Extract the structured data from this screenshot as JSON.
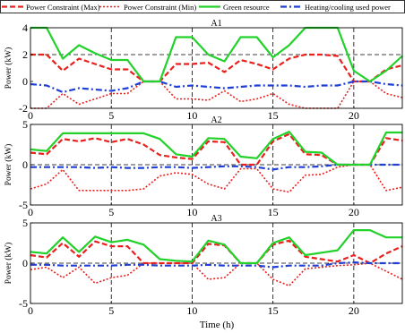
{
  "legend": {
    "items": [
      {
        "label": "Power Constraint (Max)",
        "color": "#e8211d",
        "dash": "dash"
      },
      {
        "label": "Power Constraint (Min)",
        "color": "#e8211d",
        "dash": "dot"
      },
      {
        "label": "Green resource",
        "color": "#22d22a",
        "dash": "solid"
      },
      {
        "label": "Heating/cooling used power",
        "color": "#1f3fd6",
        "dash": "dashdot"
      }
    ]
  },
  "xlabel": "Time (h)",
  "chart_data": [
    {
      "type": "line",
      "title": "A1",
      "ylabel": "Power (kW)",
      "xlim": [
        0,
        23
      ],
      "ylim": [
        -2,
        4
      ],
      "yticks": [
        -2,
        0,
        2,
        4
      ],
      "xticks": [
        0,
        5,
        10,
        15,
        20
      ],
      "grid_y": [
        2
      ],
      "grid_x": [
        5,
        10,
        15,
        20
      ],
      "x": [
        0,
        1,
        2,
        3,
        4,
        5,
        6,
        7,
        8,
        9,
        10,
        11,
        12,
        13,
        14,
        15,
        16,
        17,
        18,
        19,
        20,
        21,
        22,
        23
      ],
      "series": [
        {
          "name": "Power Constraint (Max)",
          "values": [
            2.0,
            2.0,
            0.8,
            1.7,
            1.3,
            0.9,
            0.9,
            0.0,
            0.0,
            1.3,
            1.3,
            1.4,
            0.7,
            1.6,
            1.3,
            0.9,
            1.7,
            2.0,
            2.0,
            1.9,
            0.0,
            0.0,
            0.9,
            1.2
          ]
        },
        {
          "name": "Power Constraint (Min)",
          "values": [
            -2.0,
            -2.0,
            -0.9,
            -1.7,
            -1.3,
            -0.9,
            -0.9,
            0.0,
            0.0,
            -1.3,
            -1.3,
            -1.4,
            -0.7,
            -1.5,
            -1.3,
            -0.9,
            -1.7,
            -2.0,
            -2.0,
            -2.0,
            0.0,
            0.0,
            -0.9,
            -1.2
          ]
        },
        {
          "name": "Green resource",
          "values": [
            4.0,
            4.0,
            1.7,
            2.7,
            2.1,
            1.6,
            1.6,
            0.0,
            0.0,
            3.3,
            3.3,
            2.0,
            1.5,
            3.3,
            3.3,
            1.8,
            2.7,
            4.0,
            4.0,
            4.0,
            0.8,
            0.0,
            0.8,
            1.9
          ]
        },
        {
          "name": "Heating/cooling used power",
          "values": [
            -0.2,
            -0.3,
            -0.8,
            -0.5,
            -0.6,
            -0.7,
            -0.5,
            0.0,
            0.0,
            -0.4,
            -0.3,
            -0.4,
            -0.5,
            -0.4,
            -0.3,
            -0.3,
            -0.3,
            -0.4,
            -0.3,
            -0.3,
            0.0,
            0.0,
            -0.2,
            -0.3
          ]
        }
      ]
    },
    {
      "type": "line",
      "title": "A2",
      "ylabel": "Power (kW)",
      "xlim": [
        0,
        23
      ],
      "ylim": [
        -5,
        5
      ],
      "yticks": [
        -5,
        0,
        5
      ],
      "xticks": [
        0,
        5,
        10,
        15,
        20
      ],
      "grid_y": [
        0
      ],
      "grid_x": [
        5,
        10,
        15,
        20
      ],
      "x": [
        0,
        1,
        2,
        3,
        4,
        5,
        6,
        7,
        8,
        9,
        10,
        11,
        12,
        13,
        14,
        15,
        16,
        17,
        18,
        19,
        20,
        21,
        22,
        23
      ],
      "series": [
        {
          "name": "Power Constraint (Max)",
          "values": [
            1.5,
            1.3,
            3.2,
            2.9,
            3.3,
            2.8,
            3.2,
            2.5,
            1.2,
            0.9,
            0.7,
            2.9,
            2.8,
            0.0,
            0.0,
            2.9,
            3.8,
            1.3,
            1.2,
            0.0,
            0.0,
            0.0,
            3.3,
            3.0
          ]
        },
        {
          "name": "Power Constraint (Min)",
          "values": [
            -3.0,
            -2.4,
            -0.6,
            -3.2,
            -3.2,
            -3.2,
            -3.2,
            -3.0,
            -1.4,
            -1.0,
            -1.2,
            -2.4,
            -3.0,
            -0.5,
            -0.5,
            -3.0,
            -3.4,
            -1.3,
            -1.2,
            -0.3,
            0.0,
            0.0,
            -3.2,
            -2.8
          ]
        },
        {
          "name": "Green resource",
          "values": [
            1.9,
            1.7,
            3.9,
            3.9,
            3.9,
            3.9,
            3.9,
            3.9,
            3.2,
            1.3,
            1.0,
            3.3,
            3.2,
            1.0,
            0.8,
            3.2,
            4.1,
            1.6,
            1.5,
            0.0,
            0.0,
            0.0,
            4.0,
            4.0
          ]
        },
        {
          "name": "Heating/cooling used power",
          "values": [
            -0.3,
            -0.3,
            -0.3,
            -0.3,
            -0.4,
            -0.3,
            -0.4,
            -0.4,
            -0.3,
            -0.3,
            -0.4,
            -0.3,
            -0.2,
            -0.2,
            -0.3,
            -0.6,
            -0.3,
            -0.3,
            -0.2,
            0.0,
            0.0,
            0.0,
            0.0,
            0.0
          ]
        }
      ]
    },
    {
      "type": "line",
      "title": "A3",
      "ylabel": "Power (kW)",
      "xlim": [
        0,
        23
      ],
      "ylim": [
        -5,
        5
      ],
      "yticks": [
        -5,
        0,
        5
      ],
      "xticks": [
        0,
        5,
        10,
        15,
        20
      ],
      "grid_y": [
        0
      ],
      "grid_x": [
        5,
        10,
        15,
        20
      ],
      "x": [
        0,
        1,
        2,
        3,
        4,
        5,
        6,
        7,
        8,
        9,
        10,
        11,
        12,
        13,
        14,
        15,
        16,
        17,
        18,
        19,
        20,
        21,
        22,
        23
      ],
      "series": [
        {
          "name": "Power Constraint (Max)",
          "values": [
            1.0,
            0.7,
            2.5,
            0.8,
            2.7,
            2.1,
            2.1,
            0.0,
            0.0,
            0.0,
            0.0,
            2.4,
            2.2,
            0.0,
            0.0,
            2.3,
            2.8,
            0.8,
            0.5,
            0.2,
            1.0,
            0.0,
            1.2,
            2.1
          ]
        },
        {
          "name": "Power Constraint (Min)",
          "values": [
            -0.8,
            -0.5,
            -1.8,
            -0.5,
            -2.5,
            -1.8,
            -1.5,
            0.0,
            0.0,
            0.0,
            0.0,
            -2.0,
            -1.8,
            0.0,
            0.0,
            -2.0,
            -2.8,
            -0.7,
            -0.5,
            -0.3,
            -0.2,
            0.0,
            -1.0,
            -2.0
          ]
        },
        {
          "name": "Green resource",
          "values": [
            1.4,
            1.2,
            3.2,
            1.4,
            3.3,
            2.6,
            2.9,
            2.3,
            0.5,
            0.3,
            0.2,
            2.8,
            2.3,
            0.0,
            0.0,
            2.5,
            3.2,
            1.0,
            1.3,
            1.6,
            4.1,
            4.1,
            3.2,
            3.2
          ]
        },
        {
          "name": "Heating/cooling used power",
          "values": [
            -0.2,
            -0.2,
            -0.3,
            -0.3,
            -0.3,
            -0.3,
            -0.2,
            -0.2,
            -0.3,
            -0.3,
            -0.3,
            -0.2,
            -0.3,
            -0.3,
            -0.3,
            -0.5,
            -0.3,
            -0.3,
            -0.3,
            0.0,
            0.1,
            0.0,
            0.0,
            0.0
          ]
        }
      ]
    }
  ]
}
